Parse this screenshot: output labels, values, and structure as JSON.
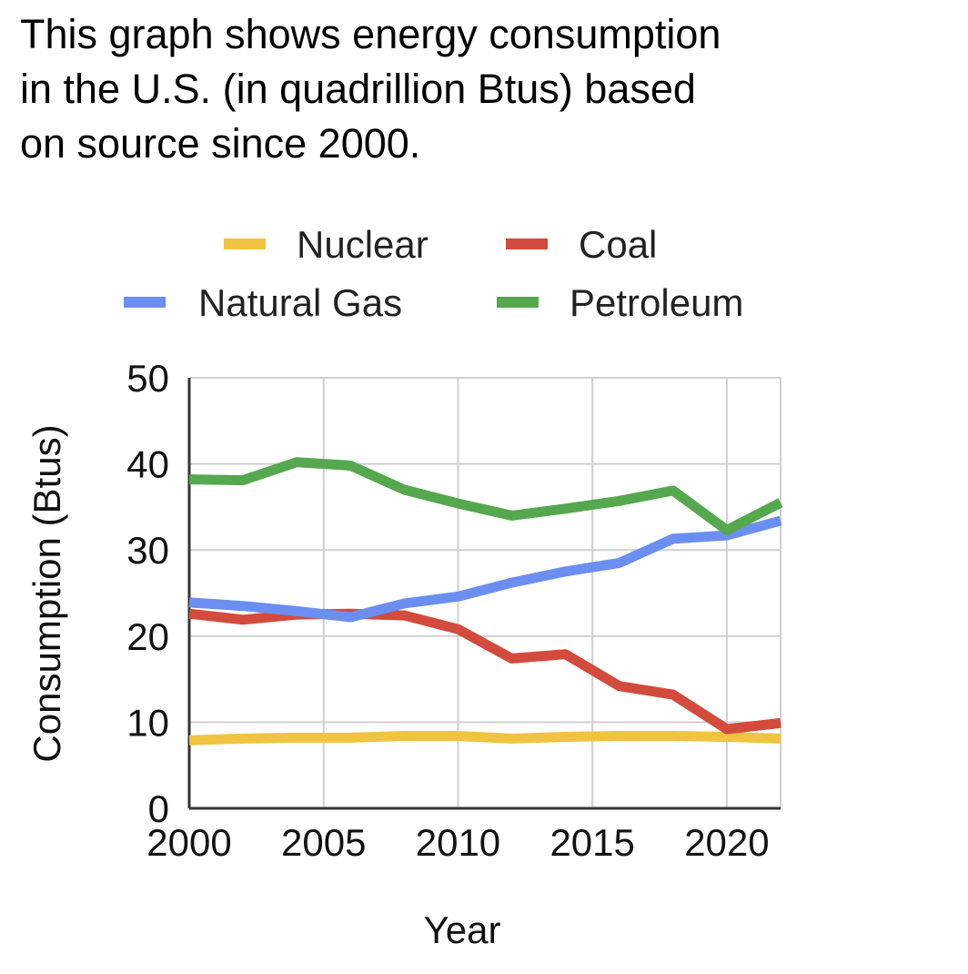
{
  "caption": {
    "lines": [
      "This graph shows energy consumption",
      "in the U.S. (in quadrillion Btus) based",
      "on source since 2000."
    ]
  },
  "chart_data": {
    "type": "line",
    "xlabel": "Year",
    "ylabel": "Consumption (Btus)",
    "xlim": [
      2000,
      2022
    ],
    "ylim": [
      0,
      50
    ],
    "x_ticks": [
      2000,
      2005,
      2010,
      2015,
      2020
    ],
    "y_ticks": [
      0,
      10,
      20,
      30,
      40,
      50
    ],
    "grid": true,
    "legend_position": "top",
    "x": [
      2000,
      2002,
      2004,
      2006,
      2008,
      2010,
      2012,
      2014,
      2016,
      2018,
      2020,
      2022
    ],
    "series": [
      {
        "name": "Nuclear",
        "color": "#f0c341",
        "values": [
          7.9,
          8.1,
          8.2,
          8.2,
          8.4,
          8.4,
          8.1,
          8.3,
          8.4,
          8.4,
          8.3,
          8.1
        ]
      },
      {
        "name": "Coal",
        "color": "#d24b3c",
        "values": [
          22.6,
          21.9,
          22.5,
          22.6,
          22.4,
          20.8,
          17.4,
          17.9,
          14.2,
          13.2,
          9.2,
          9.9
        ]
      },
      {
        "name": "Natural Gas",
        "color": "#6b8ff0",
        "values": [
          23.9,
          23.5,
          22.9,
          22.2,
          23.8,
          24.6,
          26.2,
          27.5,
          28.5,
          31.3,
          31.7,
          33.4
        ]
      },
      {
        "name": "Petroleum",
        "color": "#55a84e",
        "values": [
          38.2,
          38.1,
          40.2,
          39.8,
          37.0,
          35.4,
          34.0,
          34.8,
          35.7,
          36.9,
          32.3,
          35.5
        ]
      }
    ]
  }
}
